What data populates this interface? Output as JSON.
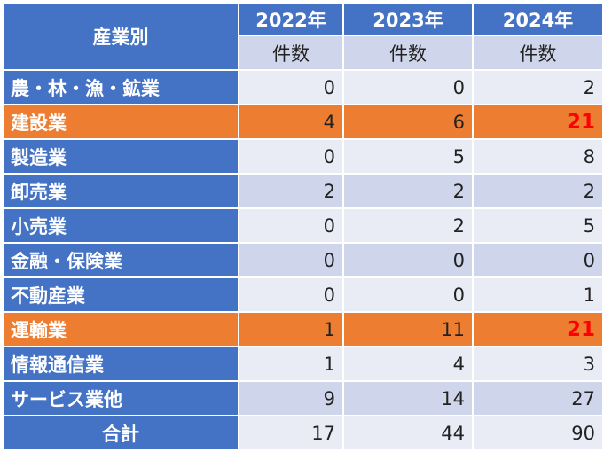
{
  "header": {
    "corner": "産業別",
    "years": [
      "2022年",
      "2023年",
      "2024年"
    ],
    "sub": [
      "件数",
      "件数",
      "件数"
    ]
  },
  "rows": [
    {
      "label": "農・林・漁・鉱業",
      "values": [
        "0",
        "0",
        "2"
      ]
    },
    {
      "label": "建設業",
      "values": [
        "4",
        "6",
        "21"
      ]
    },
    {
      "label": "製造業",
      "values": [
        "0",
        "5",
        "8"
      ]
    },
    {
      "label": "卸売業",
      "values": [
        "2",
        "2",
        "2"
      ]
    },
    {
      "label": "小売業",
      "values": [
        "0",
        "2",
        "5"
      ]
    },
    {
      "label": "金融・保険業",
      "values": [
        "0",
        "0",
        "0"
      ]
    },
    {
      "label": "不動産業",
      "values": [
        "0",
        "0",
        "1"
      ]
    },
    {
      "label": "運輸業",
      "values": [
        "1",
        "11",
        "21"
      ]
    },
    {
      "label": "情報通信業",
      "values": [
        "1",
        "4",
        "3"
      ]
    },
    {
      "label": "サービス業他",
      "values": [
        "9",
        "14",
        "27"
      ]
    }
  ],
  "total": {
    "label": "合計",
    "values": [
      "17",
      "44",
      "90"
    ]
  },
  "colors": {
    "header": "#4472c4",
    "highlight": "#ed7d31",
    "emphasis": "#ff0000"
  }
}
